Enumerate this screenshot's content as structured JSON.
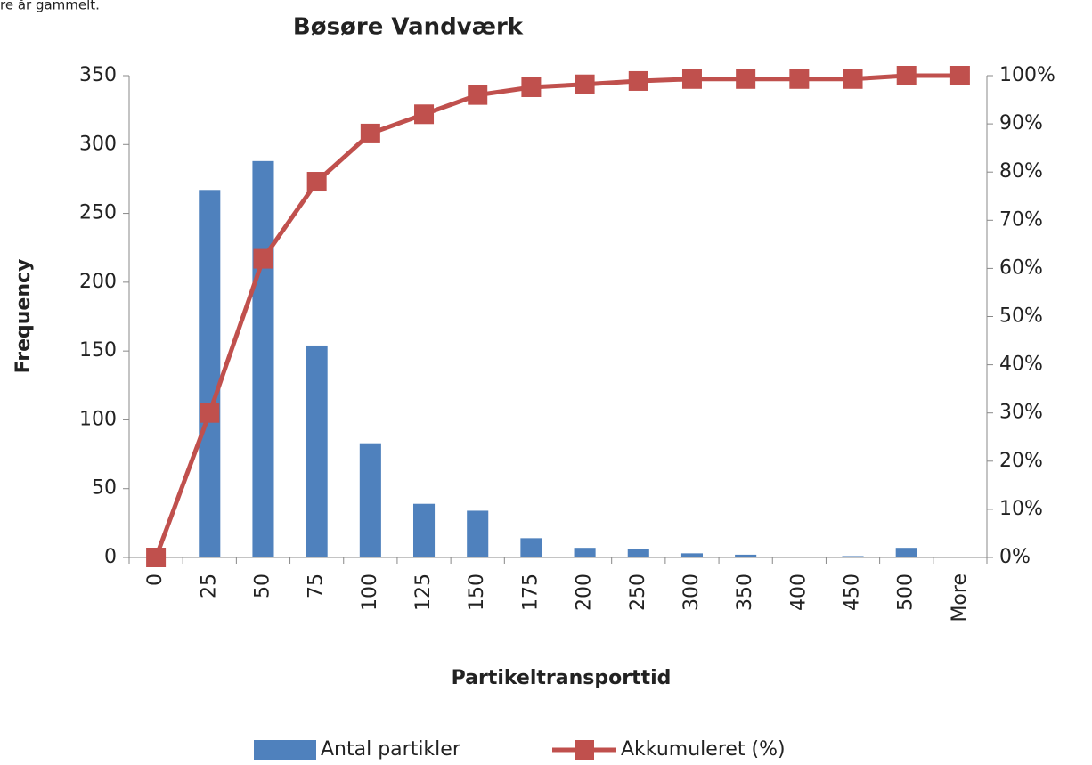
{
  "chart_data": {
    "type": "bar-line",
    "annotation": "re år gammelt.",
    "title": "Bøsøre Vandværk",
    "x_label": "Partikeltransporttid",
    "y_label": "Frequency",
    "categories": [
      "0",
      "25",
      "50",
      "75",
      "100",
      "125",
      "150",
      "175",
      "200",
      "250",
      "300",
      "350",
      "400",
      "450",
      "500",
      "More"
    ],
    "series": [
      {
        "name": "Antal partikler",
        "type": "bar",
        "color": "#4f81bd",
        "axis": "y",
        "values": [
          0,
          267,
          288,
          154,
          83,
          39,
          34,
          14,
          7,
          6,
          3,
          2,
          0,
          1,
          7,
          0
        ]
      },
      {
        "name": "Akkumuleret (%)",
        "type": "line",
        "color": "#c0504d",
        "axis": "y2",
        "marker": "square",
        "values": [
          0,
          30,
          62,
          78,
          88,
          92,
          96,
          97.6,
          98.2,
          98.9,
          99.3,
          99.3,
          99.3,
          99.3,
          100,
          100
        ]
      }
    ],
    "ylim": [
      0,
      350
    ],
    "yticks": [
      0,
      50,
      100,
      150,
      200,
      250,
      300,
      350
    ],
    "y2lim": [
      0,
      100
    ],
    "y2ticks": [
      {
        "value": 0,
        "label": "0%"
      },
      {
        "value": 10,
        "label": "10%"
      },
      {
        "value": 20,
        "label": "20%"
      },
      {
        "value": 30,
        "label": "30%"
      },
      {
        "value": 40,
        "label": "40%"
      },
      {
        "value": 50,
        "label": "50%"
      },
      {
        "value": 60,
        "label": "60%"
      },
      {
        "value": 70,
        "label": "70%"
      },
      {
        "value": 80,
        "label": "80%"
      },
      {
        "value": 90,
        "label": "90%"
      },
      {
        "value": 100,
        "label": "100%"
      }
    ],
    "grid": false,
    "legend": "bottom"
  }
}
